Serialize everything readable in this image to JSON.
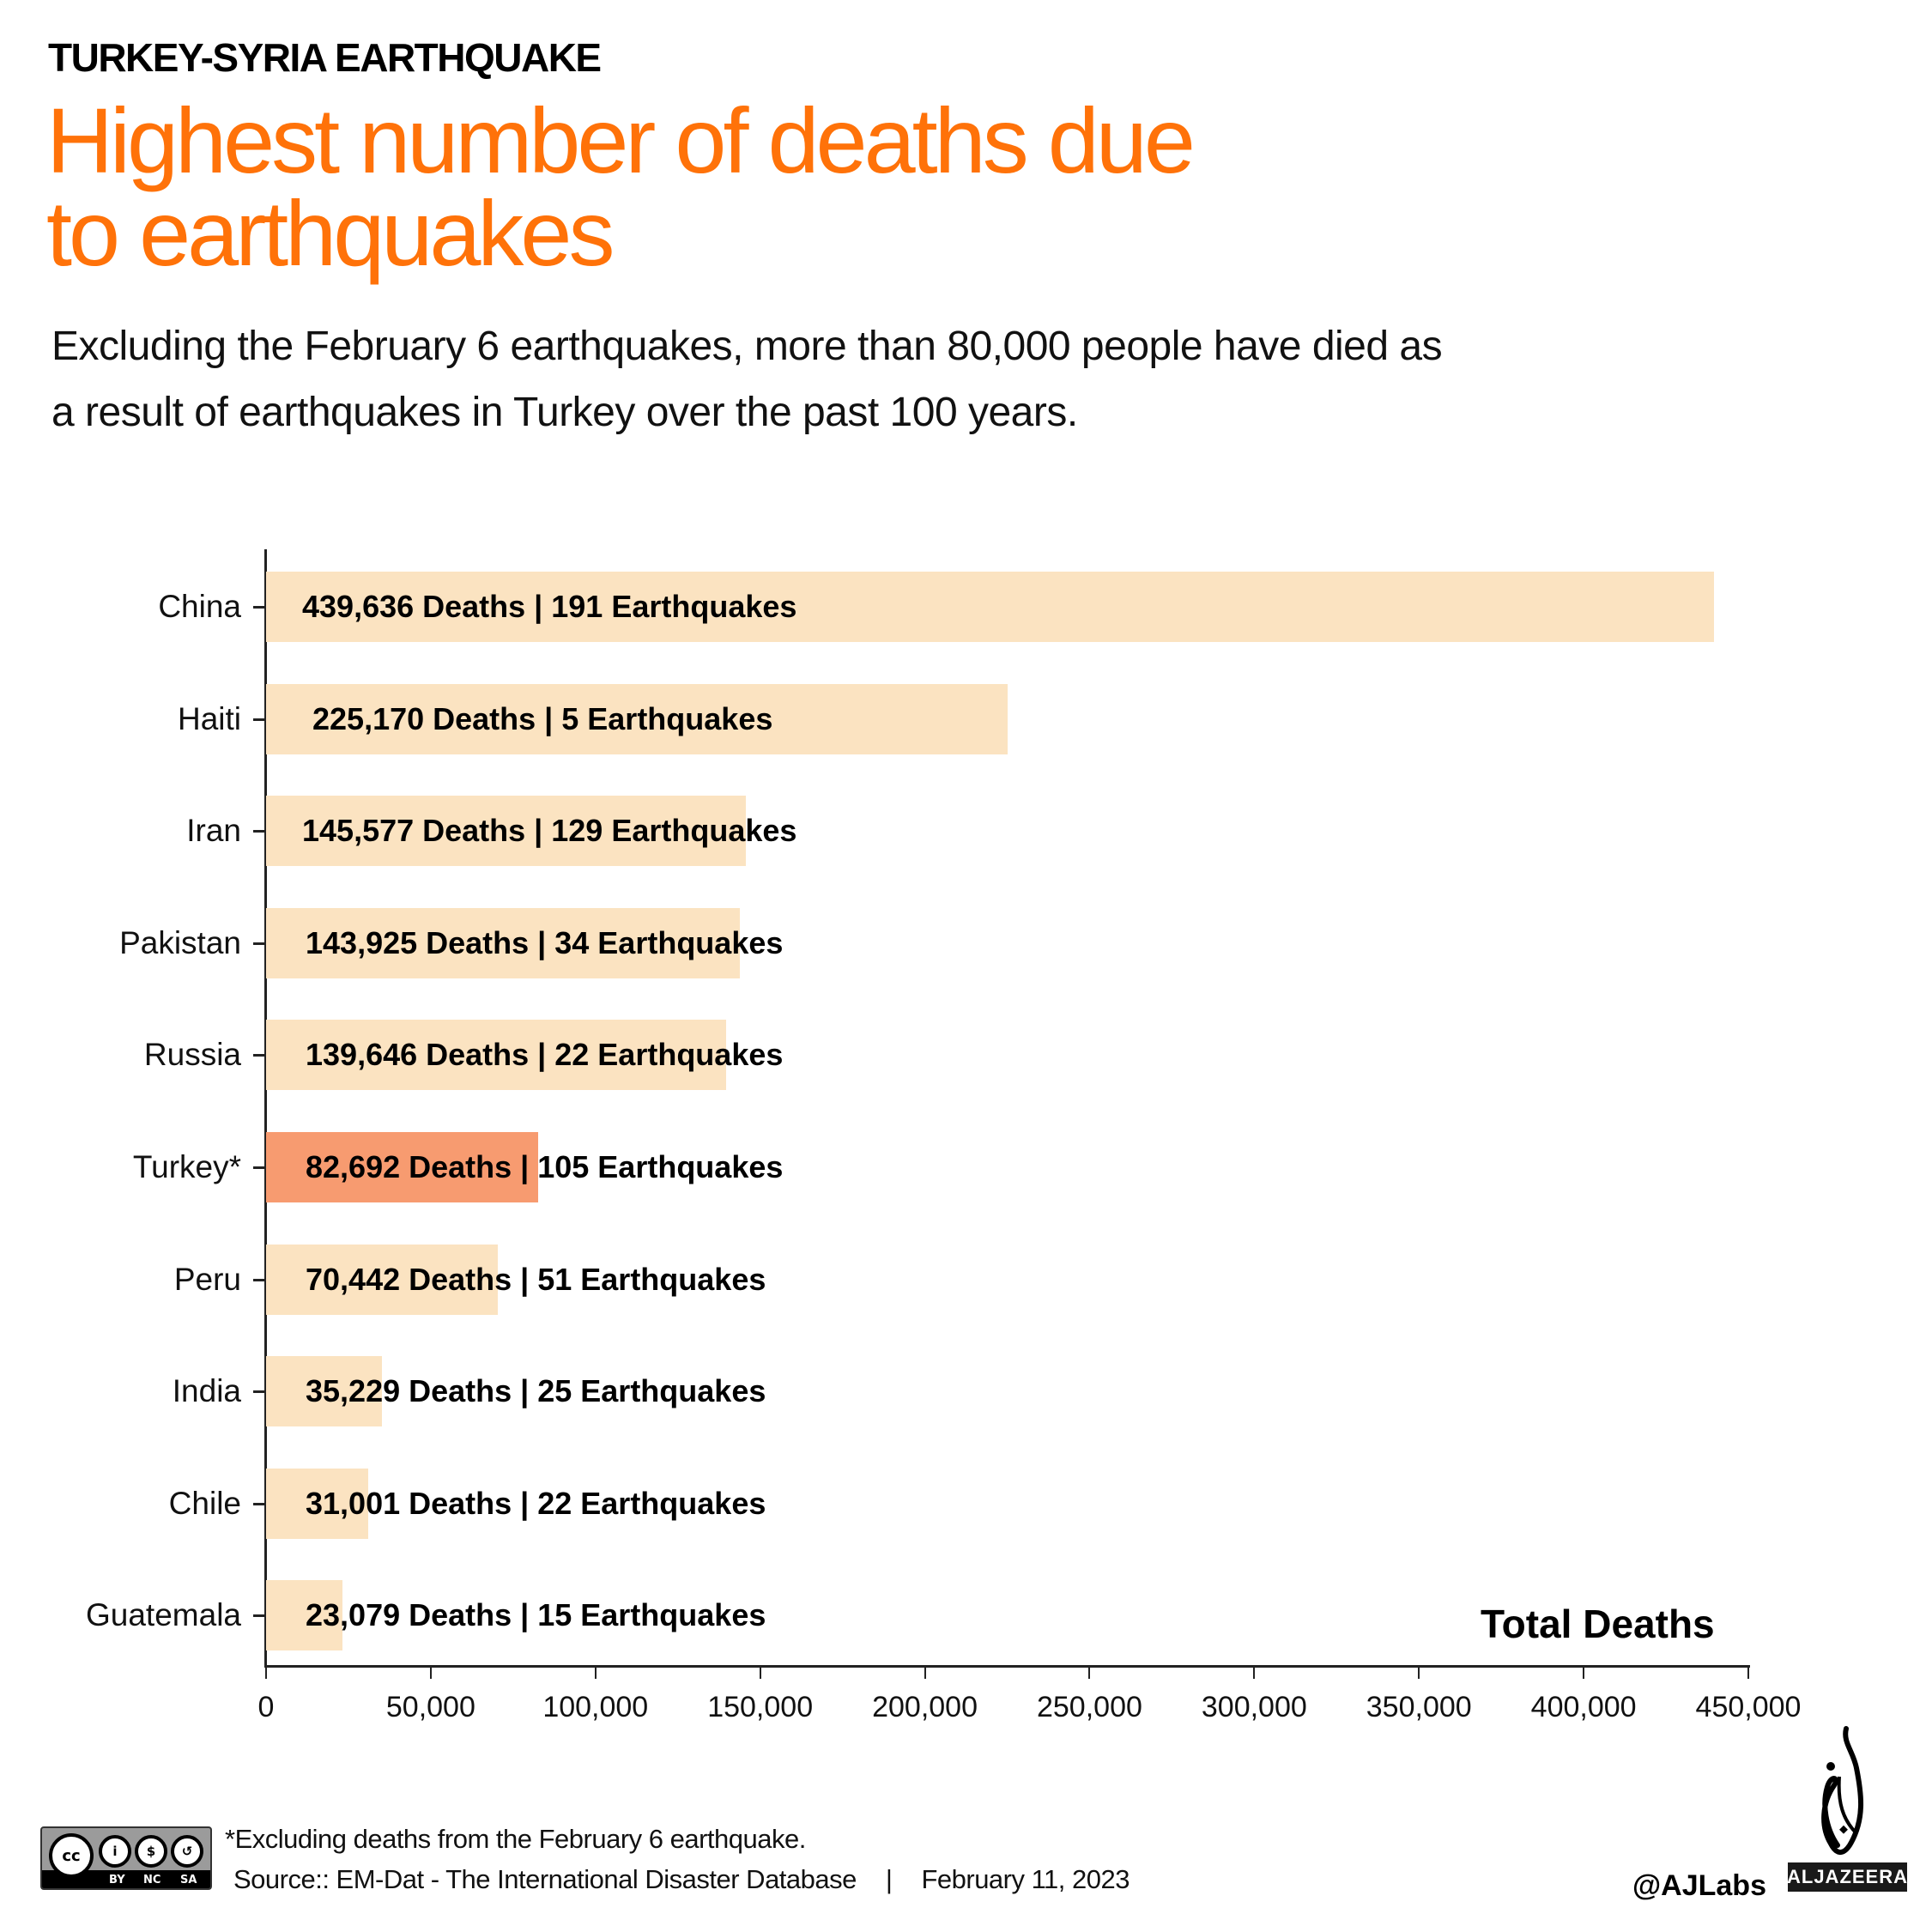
{
  "header": {
    "kicker": "TURKEY-SYRIA EARTHQUAKE",
    "title_line1": "Highest number of deaths due",
    "title_line2": "to earthquakes",
    "subtitle_line1": "Excluding the February 6 earthquakes, more than 80,000 people have died as",
    "subtitle_line2": "a result of earthquakes in Turkey over the past 100 years."
  },
  "colors": {
    "title": "#ff7209",
    "bar_default": "#fbe3c1",
    "bar_highlight": "#f79b70",
    "axis": "#222222"
  },
  "chart_data": {
    "type": "bar",
    "orientation": "horizontal",
    "title": "Highest number of deaths due to earthquakes",
    "xlabel": "Total Deaths",
    "ylabel": "",
    "xlim": [
      0,
      450000
    ],
    "grid": false,
    "categories": [
      "China",
      "Haiti",
      "Iran",
      "Pakistan",
      "Russia",
      "Turkey*",
      "Peru",
      "India",
      "Chile",
      "Guatemala"
    ],
    "values": [
      439636,
      225170,
      145577,
      143925,
      139646,
      82692,
      70442,
      35229,
      31001,
      23079
    ],
    "earthquakes": [
      191,
      5,
      129,
      34,
      22,
      105,
      51,
      25,
      22,
      15
    ],
    "data_labels": [
      "439,636 Deaths | 191 Earthquakes",
      "225,170 Deaths | 5 Earthquakes",
      "145,577 Deaths | 129 Earthquakes",
      "143,925 Deaths | 34 Earthquakes",
      "139,646 Deaths | 22 Earthquakes",
      "82,692 Deaths | 105 Earthquakes",
      "70,442 Deaths | 51 Earthquakes",
      "35,229 Deaths | 25 Earthquakes",
      "31,001 Deaths | 22 Earthquakes",
      "23,079 Deaths | 15 Earthquakes"
    ],
    "highlight": "Turkey*",
    "x_ticks": [
      "0",
      "50,000",
      "100,000",
      "150,000",
      "200,000",
      "250,000",
      "300,000",
      "350,000",
      "400,000",
      "450,000"
    ]
  },
  "footer": {
    "footnote": "*Excluding deaths from the February 6 earthquake.",
    "source": "Source:: EM-Dat - The International Disaster Database",
    "separator": "|",
    "date": "February 11, 2023",
    "handle": "@AJLabs",
    "brand": "ALJAZEERA",
    "license": {
      "cc": "cc",
      "tags": [
        "BY",
        "NC",
        "SA"
      ]
    }
  }
}
